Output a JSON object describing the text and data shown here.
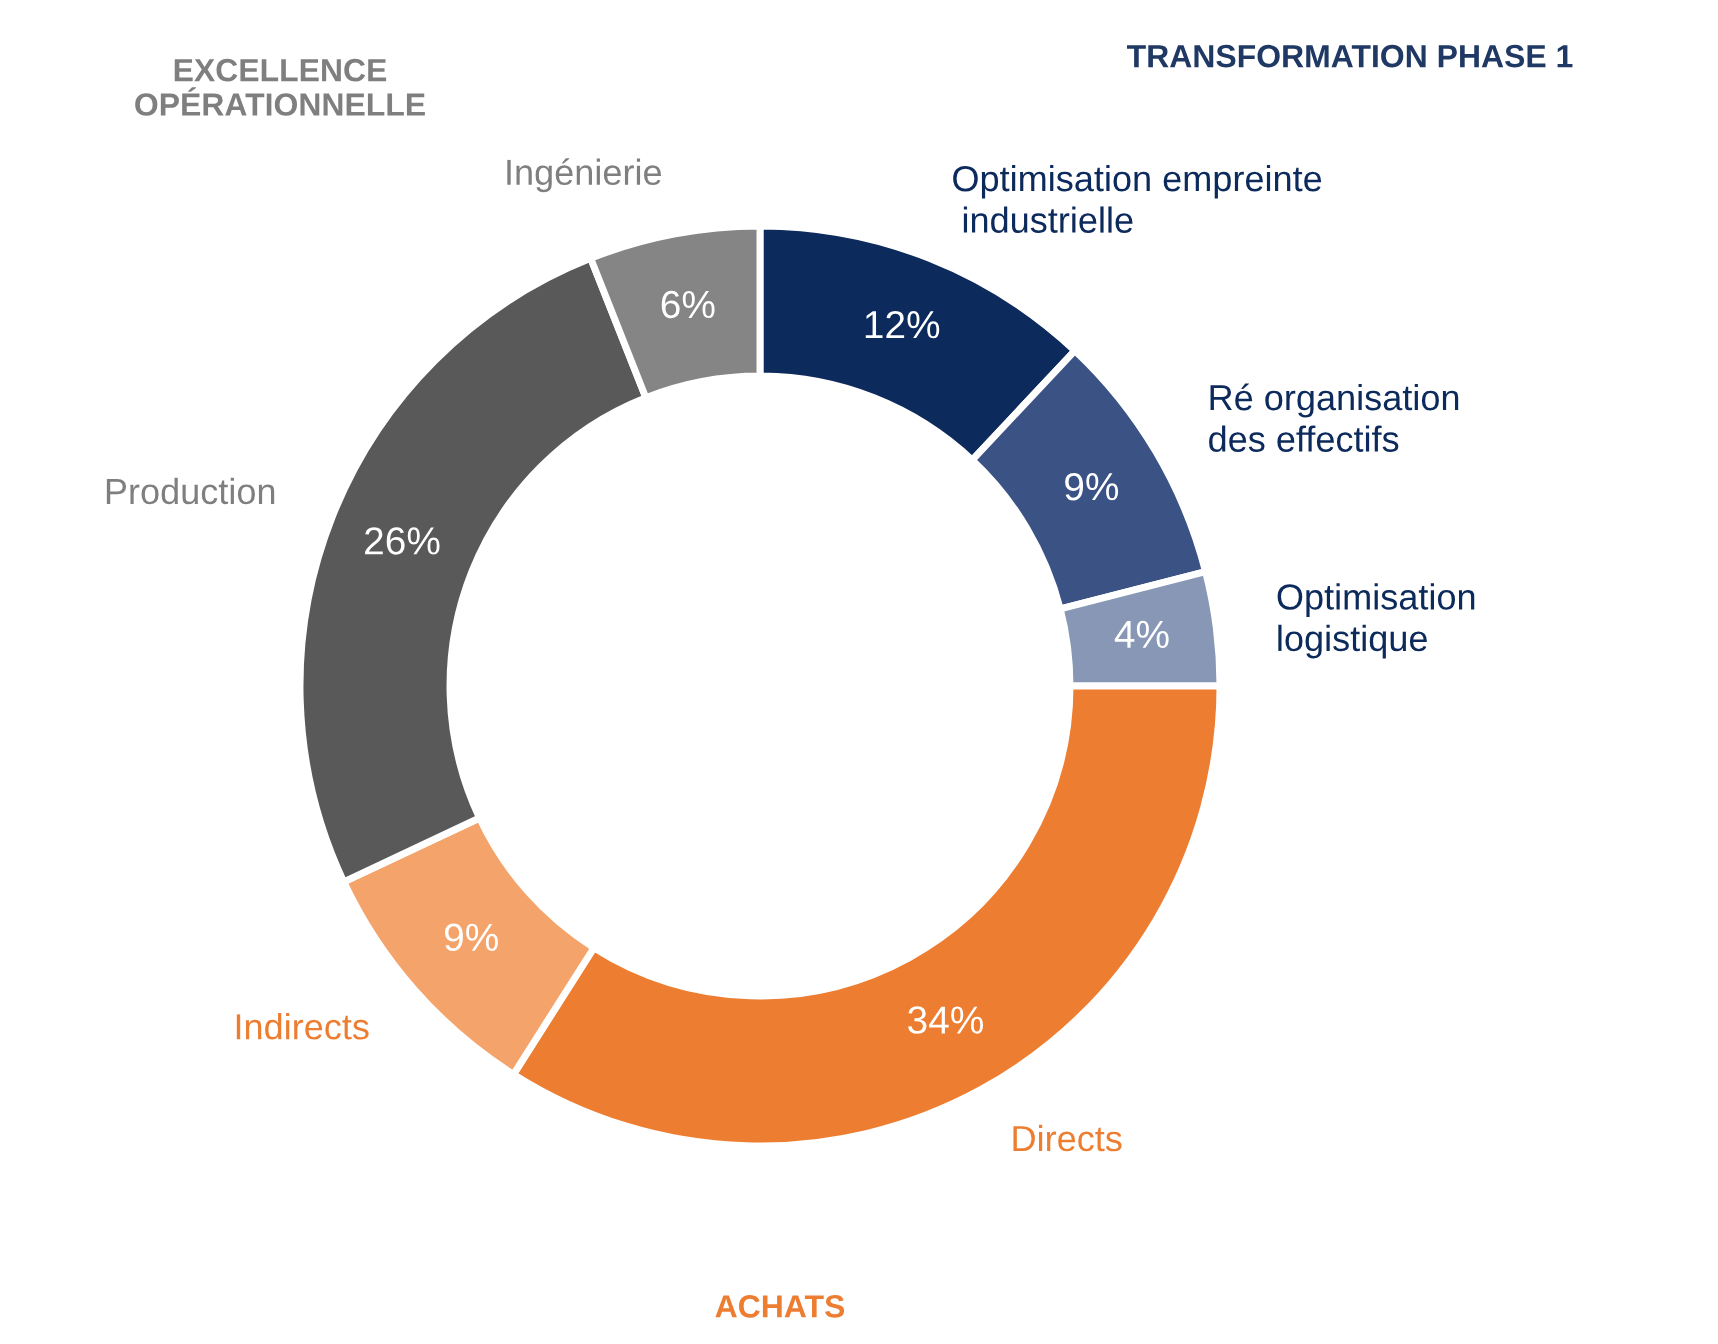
{
  "chart_data": {
    "type": "donut",
    "categories": [
      "Optimisation empreinte\n industrielle",
      "Ré organisation\ndes effectifs",
      "Optimisation\nlogistique",
      "Directs",
      "Indirects",
      "Production",
      "Ingénierie"
    ],
    "values": [
      12,
      9,
      4,
      34,
      9,
      26,
      6
    ],
    "colors": [
      "#0c2a5b",
      "#3b5285",
      "#8797b5",
      "#ed7d31",
      "#f4a46a",
      "#595959",
      "#858585"
    ],
    "value_labels": [
      "12%",
      "9%",
      "4%",
      "34%",
      "9%",
      "26%",
      "6%"
    ],
    "annotations": [
      "EXCELLENCE\nOPÉRATIONNELLE",
      "TRANSFORMATION PHASE 1",
      "ACHATS"
    ]
  }
}
